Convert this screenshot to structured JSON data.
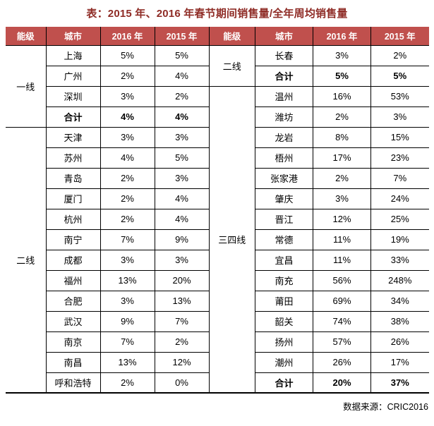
{
  "title": "表：2015 年、2016 年春节期间销售量/全年周均销售量",
  "source": "数据来源：CRIC2016",
  "colors": {
    "header_bg": "#C0504D",
    "header_text": "#FFFFFF",
    "title_text": "#8F2C26",
    "border": "#000000"
  },
  "chart_data": {
    "type": "table",
    "title": "表：2015 年、2016 年春节期间销售量/全年周均销售量",
    "columns": [
      "能级",
      "城市",
      "2016 年",
      "2015 年"
    ],
    "tables": [
      {
        "groups": [
          {
            "tier": "一线",
            "rows": [
              {
                "city": "上海",
                "v2016": "5%",
                "v2015": "5%"
              },
              {
                "city": "广州",
                "v2016": "2%",
                "v2015": "4%"
              },
              {
                "city": "深圳",
                "v2016": "3%",
                "v2015": "2%"
              },
              {
                "city": "合计",
                "v2016": "4%",
                "v2015": "4%",
                "bold": true
              }
            ]
          },
          {
            "tier": "二线",
            "rows": [
              {
                "city": "天津",
                "v2016": "3%",
                "v2015": "3%"
              },
              {
                "city": "苏州",
                "v2016": "4%",
                "v2015": "5%"
              },
              {
                "city": "青岛",
                "v2016": "2%",
                "v2015": "3%"
              },
              {
                "city": "厦门",
                "v2016": "2%",
                "v2015": "4%"
              },
              {
                "city": "杭州",
                "v2016": "2%",
                "v2015": "4%"
              },
              {
                "city": "南宁",
                "v2016": "7%",
                "v2015": "9%"
              },
              {
                "city": "成都",
                "v2016": "3%",
                "v2015": "3%"
              },
              {
                "city": "福州",
                "v2016": "13%",
                "v2015": "20%"
              },
              {
                "city": "合肥",
                "v2016": "3%",
                "v2015": "13%"
              },
              {
                "city": "武汉",
                "v2016": "9%",
                "v2015": "7%"
              },
              {
                "city": "南京",
                "v2016": "7%",
                "v2015": "2%"
              },
              {
                "city": "南昌",
                "v2016": "13%",
                "v2015": "12%"
              },
              {
                "city": "呼和浩特",
                "v2016": "2%",
                "v2015": "0%"
              }
            ]
          }
        ]
      },
      {
        "groups": [
          {
            "tier": "二线",
            "rows": [
              {
                "city": "长春",
                "v2016": "3%",
                "v2015": "2%"
              },
              {
                "city": "合计",
                "v2016": "5%",
                "v2015": "5%",
                "bold": true
              }
            ]
          },
          {
            "tier": "三四线",
            "rows": [
              {
                "city": "温州",
                "v2016": "16%",
                "v2015": "53%"
              },
              {
                "city": "潍坊",
                "v2016": "2%",
                "v2015": "3%"
              },
              {
                "city": "龙岩",
                "v2016": "8%",
                "v2015": "15%"
              },
              {
                "city": "梧州",
                "v2016": "17%",
                "v2015": "23%"
              },
              {
                "city": "张家港",
                "v2016": "2%",
                "v2015": "7%"
              },
              {
                "city": "肇庆",
                "v2016": "3%",
                "v2015": "24%"
              },
              {
                "city": "晋江",
                "v2016": "12%",
                "v2015": "25%"
              },
              {
                "city": "常德",
                "v2016": "11%",
                "v2015": "19%"
              },
              {
                "city": "宜昌",
                "v2016": "11%",
                "v2015": "33%"
              },
              {
                "city": "南充",
                "v2016": "56%",
                "v2015": "248%"
              },
              {
                "city": "莆田",
                "v2016": "69%",
                "v2015": "34%"
              },
              {
                "city": "韶关",
                "v2016": "74%",
                "v2015": "38%"
              },
              {
                "city": "扬州",
                "v2016": "57%",
                "v2015": "26%"
              },
              {
                "city": "潮州",
                "v2016": "26%",
                "v2015": "17%"
              },
              {
                "city": "合计",
                "v2016": "20%",
                "v2015": "37%",
                "bold": true
              }
            ]
          }
        ]
      }
    ]
  }
}
